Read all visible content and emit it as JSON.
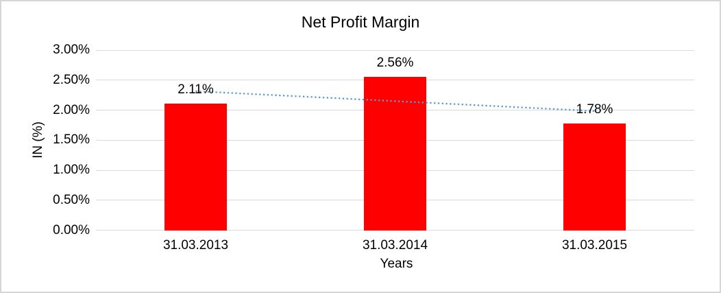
{
  "frame": {
    "background": "#ffffff",
    "border_color": "#d6d6d6"
  },
  "chart_data": {
    "type": "bar",
    "title": "Net Profit Margin",
    "categories": [
      "31.03.2013",
      "31.03.2014",
      "31.03.2015"
    ],
    "series": [
      {
        "name": "Net Profit Margin",
        "color": "#ff0000",
        "values": [
          2.11,
          2.56,
          1.78
        ],
        "data_labels": [
          "2.11%",
          "2.56%",
          "1.78%"
        ]
      }
    ],
    "xlabel": "Years",
    "ylabel": "IN (%)",
    "ylim": [
      0,
      3
    ],
    "yticks": [
      0,
      0.5,
      1,
      1.5,
      2,
      2.5,
      3
    ],
    "ytick_labels": [
      "0.00%",
      "0.50%",
      "1.00%",
      "1.50%",
      "2.00%",
      "2.50%",
      "3.00%"
    ],
    "grid": true,
    "gridline_color": "#d9d9d9",
    "legend": "none",
    "trendline": {
      "series": "Net Profit Margin",
      "type": "linear",
      "style": "dotted",
      "color": "#5b9bd5"
    }
  }
}
